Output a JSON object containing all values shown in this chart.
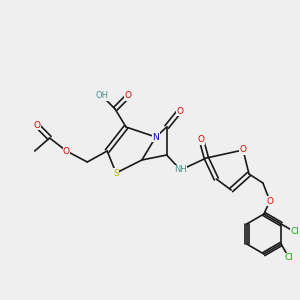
{
  "bg_color": "#efefef",
  "bond_color": "#1a1a1a",
  "atom_colors": {
    "O": "#e00000",
    "N": "#0000cc",
    "S": "#b8b800",
    "Cl": "#00bb00",
    "OH_color": "#4a9090",
    "C": "#1a1a1a"
  },
  "figsize": [
    3.0,
    3.0
  ],
  "dpi": 100
}
